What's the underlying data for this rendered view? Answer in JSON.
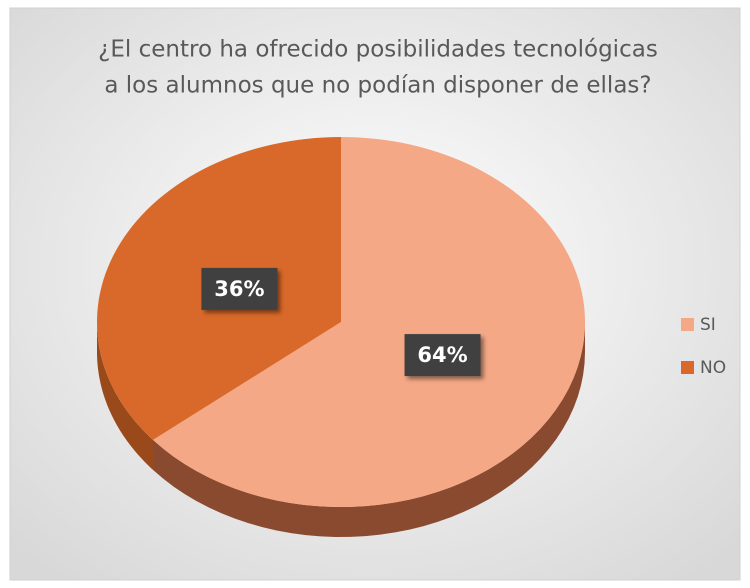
{
  "chart_data": {
    "type": "pie",
    "title": [
      "¿El centro ha ofrecido posibilidades tecnológicas",
      "a los alumnos que no podían disponer de ellas?"
    ],
    "categories": [
      "SI",
      "NO"
    ],
    "values": [
      64,
      36
    ],
    "value_labels": [
      "64%",
      "36%"
    ],
    "colors": [
      "#f4a886",
      "#d9692a"
    ],
    "side_colors": [
      "#8a4a30",
      "#9a4a1a"
    ],
    "legend": "right"
  }
}
